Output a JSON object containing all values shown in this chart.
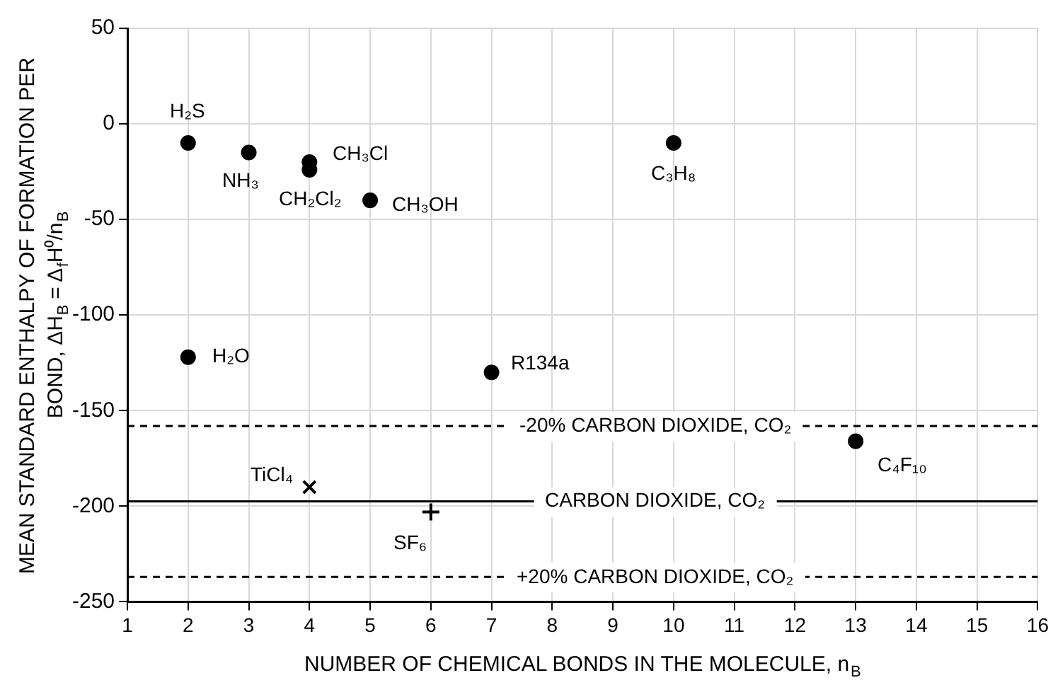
{
  "chart_data": {
    "type": "scatter",
    "xlabel": "NUMBER OF CHEMICAL BONDS IN THE MOLECULE, n$_{B}$",
    "ylabel": "MEAN STANDARD ENTHALPY OF FORMATION PER BOND, ΔH$_{B}$ = Δ$_{f}$H⁰/n$_{B}$",
    "xlim": [
      1,
      16
    ],
    "xticks": [
      1,
      2,
      3,
      4,
      5,
      6,
      7,
      8,
      9,
      10,
      11,
      12,
      13,
      14,
      15,
      16
    ],
    "ylim": [
      -250,
      50
    ],
    "yticks": [
      -250,
      -200,
      -150,
      -100,
      -50,
      0,
      50
    ],
    "grid": true,
    "legend": false,
    "series": [
      {
        "name": "H₂S",
        "color": "#000000",
        "marker": "circle",
        "x": [
          2
        ],
        "values": [
          -10
        ]
      },
      {
        "name": "NH₃",
        "color": "#000000",
        "marker": "circle",
        "x": [
          3
        ],
        "values": [
          -15
        ]
      },
      {
        "name": "CH₃Cl",
        "color": "#000000",
        "marker": "circle",
        "x": [
          4
        ],
        "values": [
          -20
        ]
      },
      {
        "name": "CH₂Cl₂",
        "color": "#000000",
        "marker": "circle",
        "x": [
          4
        ],
        "values": [
          -24
        ]
      },
      {
        "name": "CH₃OH",
        "color": "#000000",
        "marker": "circle",
        "x": [
          5
        ],
        "values": [
          -40
        ]
      },
      {
        "name": "C₃H₈",
        "color": "#000000",
        "marker": "circle",
        "x": [
          10
        ],
        "values": [
          -10
        ]
      },
      {
        "name": "H₂O",
        "color": "#000000",
        "marker": "circle",
        "x": [
          2
        ],
        "values": [
          -122
        ]
      },
      {
        "name": "R134a",
        "color": "#000000",
        "marker": "circle",
        "x": [
          7
        ],
        "values": [
          -130
        ]
      },
      {
        "name": "C₄F₁₀",
        "color": "#000000",
        "marker": "circle",
        "x": [
          13
        ],
        "values": [
          -166
        ]
      },
      {
        "name": "TiCl₄",
        "color": "#000000",
        "marker": "x",
        "x": [
          4
        ],
        "values": [
          -190
        ]
      },
      {
        "name": "SF₆",
        "color": "#000000",
        "marker": "cross",
        "x": [
          6
        ],
        "values": [
          -203
        ]
      }
    ],
    "ref_lines": [
      {
        "axis": "y",
        "value": -158,
        "label": "-20% CARBON DIOXIDE, CO₂",
        "color": "#000000",
        "line_style": "dashed"
      },
      {
        "axis": "y",
        "value": -197.5,
        "label": "CARBON DIOXIDE, CO₂",
        "color": "#000000",
        "line_style": "solid"
      },
      {
        "axis": "y",
        "value": -237,
        "label": "+20% CARBON DIOXIDE, CO₂",
        "color": "#000000",
        "line_style": "dashed"
      }
    ]
  }
}
